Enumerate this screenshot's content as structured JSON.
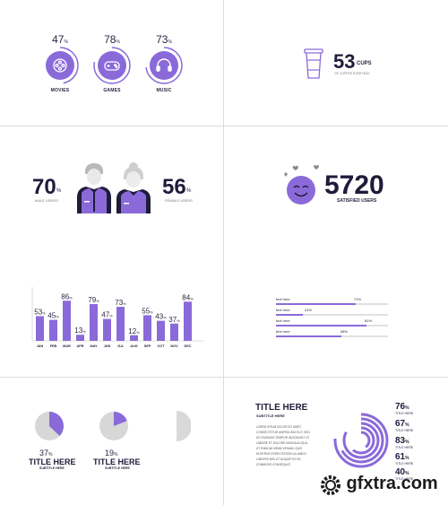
{
  "colors": {
    "accent": "#8a6ad9",
    "accent_light": "#a98ce6",
    "dark": "#2a2540",
    "grey": "#d7d7d7"
  },
  "interests": [
    {
      "value": "47",
      "unit": "%",
      "label": "MOVIES",
      "icon": "film-reel-icon"
    },
    {
      "value": "78",
      "unit": "%",
      "label": "GAMES",
      "icon": "gamepad-icon"
    },
    {
      "value": "73",
      "unit": "%",
      "label": "MUSIC",
      "icon": "headphones-icon"
    }
  ],
  "cups": {
    "value": "53",
    "unit": "CUPS",
    "sub": "OF COFFEE EVERYDAY"
  },
  "users": {
    "male": {
      "value": "70",
      "unit": "%",
      "label": "MALE USERS"
    },
    "female": {
      "value": "56",
      "unit": "%",
      "label": "FEMALE USERS"
    }
  },
  "satisfied": {
    "value": "5720",
    "label": "SATISFIED USERS"
  },
  "chart_data": {
    "type": "bar",
    "categories": [
      "JAN",
      "FEB",
      "MAR",
      "APR",
      "MAY",
      "JUN",
      "JUL",
      "AUG",
      "SEP",
      "OCT",
      "NOV",
      "DEC"
    ],
    "values": [
      53,
      45,
      86,
      13,
      79,
      47,
      73,
      12,
      55,
      43,
      37,
      84
    ],
    "value_unit": "%",
    "ylim": [
      0,
      100
    ],
    "grid": false
  },
  "progress": [
    {
      "label": "text here",
      "value": 71,
      "text": "71%"
    },
    {
      "label": "text here",
      "value": 24,
      "text": "24%"
    },
    {
      "label": "text here",
      "value": 81,
      "text": "81%"
    },
    {
      "label": "text here",
      "value": 58,
      "text": "58%"
    }
  ],
  "pies": [
    {
      "value": 37,
      "text": "37",
      "unit": "%",
      "title": "TITLE HERE",
      "subtitle": "SUBTITLE HERE"
    },
    {
      "value": 19,
      "text": "19",
      "unit": "%",
      "title": "TITLE HERE",
      "subtitle": "SUBTITLE HERE"
    }
  ],
  "panel": {
    "title": "TITLE HERE",
    "subtitle": "SUBTITLE HERE",
    "body": "LOREM IPSUM DOLOR SIT AMET, CONSECTETUR ADIPISICING ELIT, SED DO EIUSMOD TEMPOR INCIDIDUNT UT LABORE ET DOLORE MAGNA ALIQUA. UT ENIM AD MINIM VENIAM, QUIS NOSTRUD EXERCITATION ULLAMCO LABORIS NISI UT ALIQUIP EX EA COMMODO CONSEQUAT.",
    "rings": [
      {
        "value": 76,
        "text": "76",
        "unit": "%",
        "label": "TITLE HERE"
      },
      {
        "value": 67,
        "text": "67",
        "unit": "%",
        "label": "TITLE HERE"
      },
      {
        "value": 83,
        "text": "83",
        "unit": "%",
        "label": "TITLE HERE"
      },
      {
        "value": 61,
        "text": "61",
        "unit": "%",
        "label": "TITLE HERE"
      },
      {
        "value": 40,
        "text": "40",
        "unit": "%",
        "label": "TITLE HERE"
      }
    ]
  },
  "watermark": "gfxtra.com"
}
